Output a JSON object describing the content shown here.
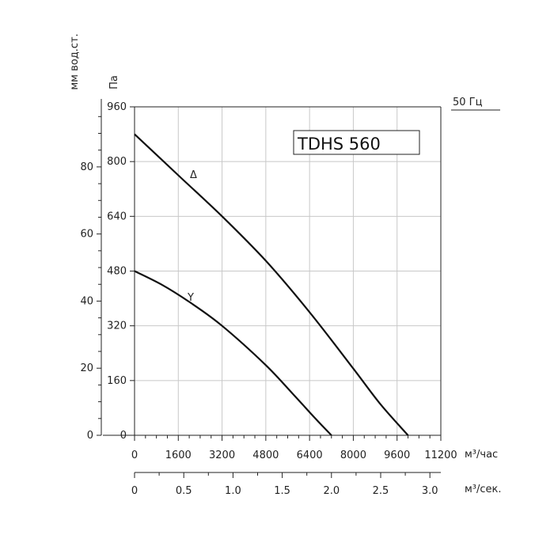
{
  "chart_data": {
    "type": "line",
    "model_label": "TDHS 560",
    "frequency_label": "50 Гц",
    "x_axis": {
      "label": "м³/час",
      "range": [
        0,
        11200
      ],
      "ticks": [
        0,
        1600,
        3200,
        4800,
        6400,
        8000,
        9600,
        11200
      ]
    },
    "x2_axis": {
      "label": "м³/сек.",
      "range": [
        0,
        3.111
      ],
      "ticks": [
        "0",
        "0.5",
        "1.0",
        "1.5",
        "2.0",
        "2.5",
        "3.0"
      ]
    },
    "y_axis": {
      "label": "Па",
      "range": [
        0,
        960
      ],
      "ticks": [
        0,
        160,
        320,
        480,
        640,
        800,
        960
      ]
    },
    "y2_axis": {
      "label": "мм вод.ст.",
      "range": [
        0,
        97.9
      ],
      "ticks": [
        0,
        20,
        40,
        60,
        80
      ]
    },
    "grid": true,
    "series": [
      {
        "name": "Δ",
        "x": [
          0,
          1600,
          3200,
          4800,
          6400,
          8000,
          9000,
          10000
        ],
        "y": [
          880,
          760,
          640,
          510,
          360,
          195,
          90,
          0
        ]
      },
      {
        "name": "Y",
        "x": [
          0,
          1000,
          2000,
          3200,
          4800,
          5800,
          6600,
          7200
        ],
        "y": [
          480,
          440,
          390,
          320,
          205,
          120,
          50,
          0
        ]
      }
    ]
  }
}
